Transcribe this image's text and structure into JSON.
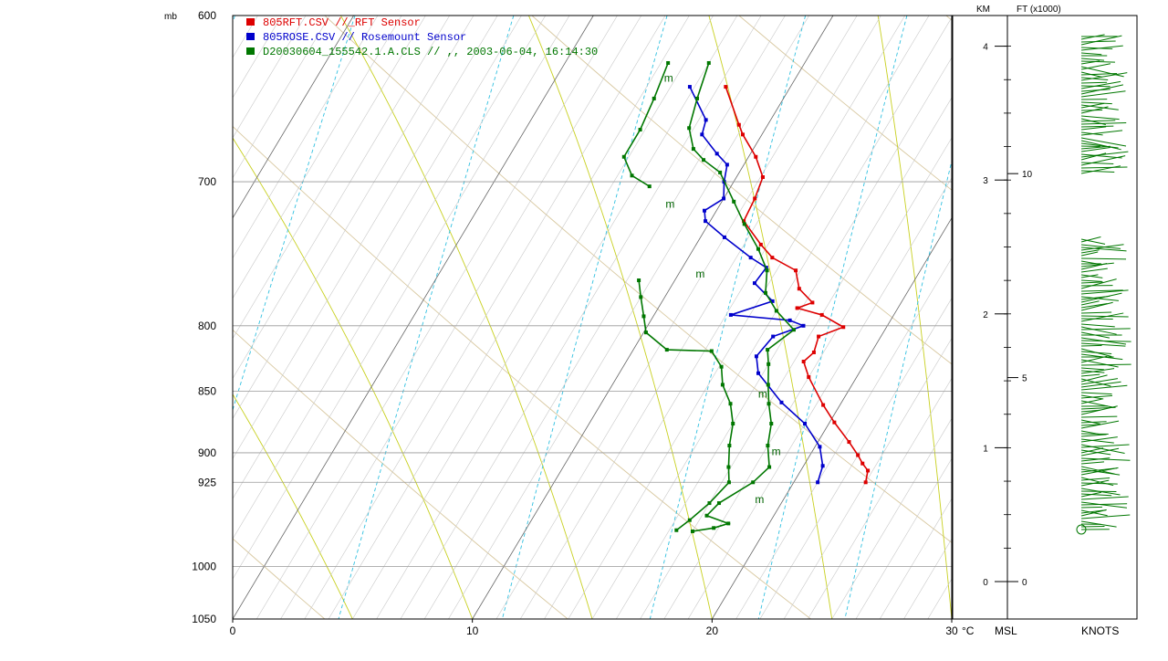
{
  "chart_data": {
    "type": "line",
    "pressure_unit_label": "mb",
    "temperature_unit_label": "°C",
    "xlim": [
      0,
      30
    ],
    "ylim_mb": [
      1050,
      600
    ],
    "x_ticks": [
      0,
      10,
      20,
      30
    ],
    "pressure_ticks": [
      600,
      700,
      800,
      850,
      900,
      925,
      1000,
      1050
    ],
    "grid": true,
    "legend_position": "top-left",
    "series": [
      {
        "name": "805RFT.CSV //_RFT Sensor",
        "color": "#dd0000",
        "points": [
          [
            7.3,
            641
          ],
          [
            8.8,
            664
          ],
          [
            9.2,
            670
          ],
          [
            10.3,
            684
          ],
          [
            11.1,
            697
          ],
          [
            11.3,
            711
          ],
          [
            11.4,
            726
          ],
          [
            12.7,
            742
          ],
          [
            13.5,
            751
          ],
          [
            14.8,
            760
          ],
          [
            15.4,
            773
          ],
          [
            16.3,
            783
          ],
          [
            15.8,
            787
          ],
          [
            17.0,
            792
          ],
          [
            18.2,
            801
          ],
          [
            17.4,
            808
          ],
          [
            17.6,
            820
          ],
          [
            17.4,
            827
          ],
          [
            18.0,
            839
          ],
          [
            19.3,
            861
          ],
          [
            20.2,
            875
          ],
          [
            21.3,
            891
          ],
          [
            22.0,
            902
          ],
          [
            22.4,
            909
          ],
          [
            22.8,
            915
          ],
          [
            23.0,
            925
          ]
        ]
      },
      {
        "name": "805ROSE.CSV // Rosemount Sensor",
        "color": "#0000cc",
        "points": [
          [
            5.8,
            641
          ],
          [
            7.3,
            661
          ],
          [
            7.5,
            670
          ],
          [
            8.6,
            682
          ],
          [
            9.3,
            689
          ],
          [
            9.6,
            700
          ],
          [
            10.0,
            711
          ],
          [
            9.5,
            719
          ],
          [
            9.8,
            726
          ],
          [
            11.0,
            737
          ],
          [
            12.6,
            751
          ],
          [
            13.5,
            758
          ],
          [
            13.4,
            769
          ],
          [
            14.6,
            782
          ],
          [
            13.2,
            792
          ],
          [
            15.8,
            796
          ],
          [
            16.5,
            800
          ],
          [
            15.5,
            808
          ],
          [
            15.3,
            823
          ],
          [
            15.8,
            836
          ],
          [
            17.5,
            859
          ],
          [
            19.0,
            876
          ],
          [
            20.2,
            895
          ],
          [
            20.8,
            911
          ],
          [
            21.0,
            925
          ]
        ]
      },
      {
        "name": "D20030604_155542.1.A.CLS // ,,  2003-06-04, 16:14:30",
        "color": "#007700",
        "points": [
          [
            6.0,
            627
          ],
          [
            6.4,
            648
          ],
          [
            6.8,
            666
          ],
          [
            7.5,
            679
          ],
          [
            8.2,
            686
          ],
          [
            9.2,
            694
          ],
          [
            10.5,
            713
          ],
          [
            11.5,
            728
          ],
          [
            12.7,
            745
          ],
          [
            13.6,
            760
          ],
          [
            14.1,
            776
          ],
          [
            15.0,
            789
          ],
          [
            16.2,
            803
          ],
          [
            15.6,
            818
          ],
          [
            16.0,
            829
          ],
          [
            16.5,
            845
          ],
          [
            17.0,
            860
          ],
          [
            17.6,
            876
          ],
          [
            18.0,
            894
          ],
          [
            18.6,
            912
          ],
          [
            18.3,
            925
          ],
          [
            17.4,
            943
          ],
          [
            17.2,
            954
          ],
          [
            18.3,
            961
          ],
          [
            17.8,
            965
          ],
          [
            17.0,
            968
          ]
        ]
      },
      {
        "name": "",
        "color": "#007700",
        "points": [
          [
            4.3,
            627
          ],
          [
            4.6,
            648
          ],
          [
            4.8,
            667
          ],
          [
            4.8,
            684
          ],
          [
            5.6,
            696
          ],
          [
            6.6,
            703
          ]
        ]
      },
      {
        "name": "",
        "color": "#007700",
        "points": [
          [
            8.5,
            767
          ],
          [
            9.0,
            779
          ],
          [
            9.6,
            793
          ],
          [
            10.1,
            805
          ],
          [
            11.4,
            818
          ],
          [
            13.3,
            819
          ],
          [
            14.1,
            831
          ],
          [
            14.6,
            845
          ],
          [
            15.4,
            860
          ],
          [
            16.0,
            876
          ],
          [
            16.4,
            894
          ],
          [
            16.9,
            912
          ],
          [
            17.3,
            925
          ],
          [
            17.0,
            943
          ],
          [
            16.6,
            958
          ],
          [
            16.3,
            967
          ]
        ]
      }
    ],
    "wind_profile_axes": {
      "km_label": "KM",
      "ft_label": "FT (x1000)",
      "msl_label": "MSL",
      "speed_label": "KNOTS",
      "km_ticks": [
        "0",
        "1",
        "2",
        "3",
        "4"
      ],
      "ft_ticks": [
        "0",
        "5",
        "10"
      ]
    },
    "m_markers": [
      {
        "label": "m",
        "x": 4.6,
        "p": 638
      },
      {
        "label": "m",
        "x": 7.8,
        "p": 717
      },
      {
        "label": "m",
        "x": 10.8,
        "p": 765
      },
      {
        "label": "m",
        "x": 16.4,
        "p": 855
      },
      {
        "label": "m",
        "x": 18.4,
        "p": 902
      },
      {
        "label": "m",
        "x": 18.9,
        "p": 943
      }
    ]
  }
}
